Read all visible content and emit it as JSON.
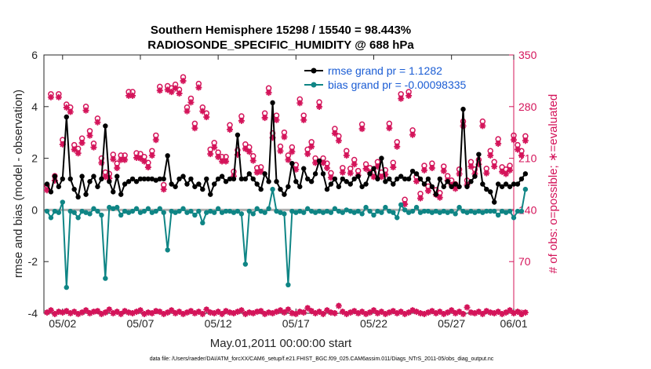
{
  "chart_data": {
    "type": "line",
    "title": [
      "Southern Hemisphere 15298 / 15540 = 98.443%",
      "RADIOSONDE_SPECIFIC_HUMIDITY @ 688 hPa"
    ],
    "xlabel": "May.01,2011 00:00:00 start",
    "ylabel_left": "rmse and bias (model - observation)",
    "ylabel_right": "# of obs: o=possible; ∗=evaluated",
    "footnote": "data file: /Users/raeder/DAI/ATM_forcXX/CAM6_setup/f.e21.FHIST_BGC.f09_025.CAM6assim.011/Diags_NTrS_2011-05/obs_diag_output.nc",
    "xlim": [
      0.8,
      31.0
    ],
    "ylim_left": [
      -4,
      6
    ],
    "ylim_right": [
      0,
      350
    ],
    "x_ticks": [
      {
        "x": 2,
        "label": "05/02"
      },
      {
        "x": 7,
        "label": "05/07"
      },
      {
        "x": 12,
        "label": "05/12"
      },
      {
        "x": 17,
        "label": "05/17"
      },
      {
        "x": 22,
        "label": "05/22"
      },
      {
        "x": 27,
        "label": "05/27"
      },
      {
        "x": 32,
        "label": "06/01"
      }
    ],
    "y_ticks_left": [
      -4,
      -2,
      0,
      2,
      4,
      6
    ],
    "y_ticks_right": [
      0,
      70,
      140,
      210,
      280,
      350
    ],
    "legend": [
      "rmse grand pr = 1.1282",
      "bias grand pr = -0.00098335"
    ],
    "colors": {
      "rmse": "#000000",
      "bias": "#0f8585",
      "obs": "#d4145a",
      "zero_line": "#b0b0b0",
      "legend_text": "#1a5cd4"
    },
    "x_start": 1.0,
    "x_step": 0.25,
    "series": [
      {
        "name": "rmse",
        "values": [
          1.0,
          0.7,
          1.3,
          0.9,
          1.2,
          3.6,
          1.2,
          0.8,
          0.5,
          1.3,
          0.6,
          1.1,
          1.3,
          0.9,
          1.2,
          3.25,
          1.1,
          0.7,
          1.3,
          0.6,
          1.0,
          1.1,
          1.2,
          1.1,
          1.2,
          1.2,
          1.2,
          1.2,
          1.15,
          1.2,
          1.2,
          2.1,
          1.0,
          0.9,
          1.2,
          1.3,
          1.0,
          1.2,
          0.9,
          1.0,
          0.8,
          1.2,
          0.6,
          1.0,
          1.2,
          1.3,
          1.1,
          1.2,
          1.2,
          2.9,
          1.2,
          1.2,
          1.4,
          1.2,
          1.0,
          0.8,
          1.4,
          1.1,
          4.15,
          1.1,
          0.8,
          0.6,
          0.9,
          1.8,
          1.1,
          0.9,
          1.6,
          1.2,
          1.1,
          1.4,
          1.9,
          1.4,
          0.8,
          1.0,
          1.2,
          0.9,
          1.2,
          1.1,
          1.0,
          1.2,
          1.3,
          0.9,
          1.0,
          1.4,
          1.6,
          1.2,
          2.0,
          1.1,
          1.2,
          1.0,
          1.2,
          1.3,
          1.2,
          1.2,
          1.5,
          1.4,
          1.2,
          1.0,
          1.2,
          0.9,
          0.6,
          1.2,
          0.9,
          1.1,
          0.9,
          1.0,
          0.9,
          3.9,
          0.9,
          1.1,
          1.3,
          2.15,
          1.0,
          0.8,
          0.7,
          0.3,
          1.0,
          0.9,
          1.0,
          0.9,
          1.0,
          1.0,
          1.2,
          1.4
        ]
      },
      {
        "name": "bias",
        "values": [
          -0.05,
          -0.3,
          -0.05,
          -0.1,
          0.3,
          -3.0,
          -0.05,
          -0.1,
          -0.3,
          -0.05,
          -0.1,
          -0.15,
          0.05,
          -0.05,
          -0.2,
          -2.65,
          0.1,
          0.05,
          0.1,
          -0.2,
          -0.05,
          -0.1,
          -0.05,
          0.05,
          -0.1,
          -0.05,
          0.05,
          -0.1,
          -0.05,
          0.05,
          -0.1,
          -1.55,
          -0.05,
          -0.1,
          -0.05,
          0.05,
          -0.1,
          -0.05,
          -0.2,
          -0.05,
          -0.5,
          -0.1,
          -0.05,
          -0.1,
          0.05,
          -0.1,
          -0.05,
          -0.05,
          -0.1,
          -0.05,
          -0.15,
          -2.1,
          -0.05,
          -0.15,
          0.05,
          -0.05,
          -0.1,
          0.05,
          0.8,
          -0.05,
          -0.1,
          -0.15,
          -2.9,
          -0.05,
          -0.1,
          -0.05,
          -0.1,
          0.05,
          -0.05,
          -0.1,
          -0.05,
          -0.1,
          -0.05,
          -0.1,
          0.05,
          -0.05,
          -0.1,
          0.0,
          -0.05,
          -0.1,
          -0.05,
          -0.15,
          0.1,
          -0.05,
          -0.2,
          -0.05,
          -0.1,
          0.1,
          -0.05,
          -0.1,
          -0.3,
          0.2,
          0.0,
          -0.1,
          -0.05,
          0.1,
          -0.1,
          -0.05,
          -0.05,
          -0.1,
          -0.05,
          -0.1,
          -0.05,
          -0.1,
          -0.05,
          -0.15,
          0.1,
          -0.05,
          -0.1,
          -0.05,
          -0.1,
          -0.05,
          -0.1,
          -0.05,
          -0.05,
          -0.05,
          -0.2,
          -0.05,
          -0.1,
          -0.05,
          -0.3,
          -0.05,
          -0.05,
          0.8
        ]
      },
      {
        "name": "obs_possible",
        "values": [
          173,
          297,
          186,
          297,
          235,
          283,
          279,
          228,
          223,
          237,
          280,
          247,
          230,
          264,
          210,
          191,
          189,
          215,
          203,
          214,
          214,
          300,
          300,
          217,
          216,
          212,
          204,
          220,
          241,
          307,
          174,
          308,
          305,
          310,
          303,
          320,
          279,
          291,
          257,
          311,
          279,
          271,
          222,
          231,
          218,
          212,
          212,
          255,
          192,
          221,
          267,
          229,
          225,
          213,
          197,
          198,
          271,
          305,
          244,
          268,
          226,
          245,
          214,
          225,
          201,
          290,
          268,
          222,
          232,
          210,
          286,
          210,
          203,
          190,
          250,
          240,
          197,
          220,
          196,
          208,
          193,
          256,
          202,
          197,
          191,
          205,
          191,
          194,
          257,
          204,
          232,
          297,
          154,
          300,
          248,
          185,
          162,
          200,
          172,
          203,
          167,
          163,
          199,
          186,
          180,
          175,
          195,
          260,
          180,
          205,
          195,
          208,
          260,
          196,
          220,
          205,
          236,
          198,
          195,
          200,
          241,
          228,
          220,
          240
        ]
      },
      {
        "name": "obs_evaluated",
        "values": [
          170,
          296,
          183,
          296,
          232,
          282,
          276,
          225,
          220,
          234,
          278,
          244,
          228,
          262,
          207,
          188,
          186,
          212,
          200,
          211,
          211,
          298,
          298,
          214,
          213,
          209,
          201,
          217,
          238,
          305,
          171,
          306,
          303,
          308,
          301,
          318,
          277,
          289,
          254,
          309,
          277,
          269,
          219,
          228,
          215,
          209,
          209,
          252,
          189,
          218,
          264,
          226,
          222,
          210,
          194,
          195,
          268,
          302,
          241,
          265,
          223,
          242,
          211,
          222,
          198,
          288,
          265,
          219,
          229,
          207,
          283,
          207,
          200,
          187,
          247,
          237,
          194,
          217,
          193,
          205,
          190,
          253,
          199,
          194,
          188,
          202,
          188,
          191,
          254,
          201,
          229,
          294,
          151,
          298,
          245,
          182,
          159,
          197,
          169,
          200,
          164,
          160,
          196,
          183,
          177,
          172,
          192,
          257,
          177,
          202,
          192,
          205,
          257,
          193,
          217,
          202,
          233,
          195,
          192,
          197,
          238,
          225,
          217,
          237
        ]
      },
      {
        "name": "obs_rejected_possible",
        "values": [
          2,
          5,
          0,
          3,
          2,
          4,
          1,
          3,
          0,
          2,
          5,
          1,
          3,
          4,
          0,
          2,
          6,
          1,
          3,
          0,
          4,
          2,
          1,
          3,
          5,
          0,
          2,
          1,
          4,
          3,
          0,
          2,
          5,
          1,
          3,
          0,
          2,
          4,
          1,
          3,
          0,
          6,
          2,
          1,
          3,
          0,
          4,
          2,
          1,
          3,
          5,
          0,
          2,
          1,
          3,
          4,
          0,
          2,
          1,
          3,
          5,
          2,
          6,
          1,
          0,
          3,
          2,
          8,
          4,
          1,
          3,
          0,
          5,
          2,
          1,
          11,
          3,
          0,
          2,
          4,
          1,
          3,
          0,
          2,
          5,
          1,
          3,
          0,
          2,
          4,
          1,
          3,
          0,
          2,
          5,
          3,
          1,
          0,
          2,
          4,
          1,
          3,
          0,
          2,
          5,
          1,
          3,
          0,
          9,
          2,
          1,
          3,
          0,
          4,
          2,
          1,
          3,
          0,
          2,
          5,
          1,
          3,
          0,
          2
        ]
      }
    ]
  }
}
